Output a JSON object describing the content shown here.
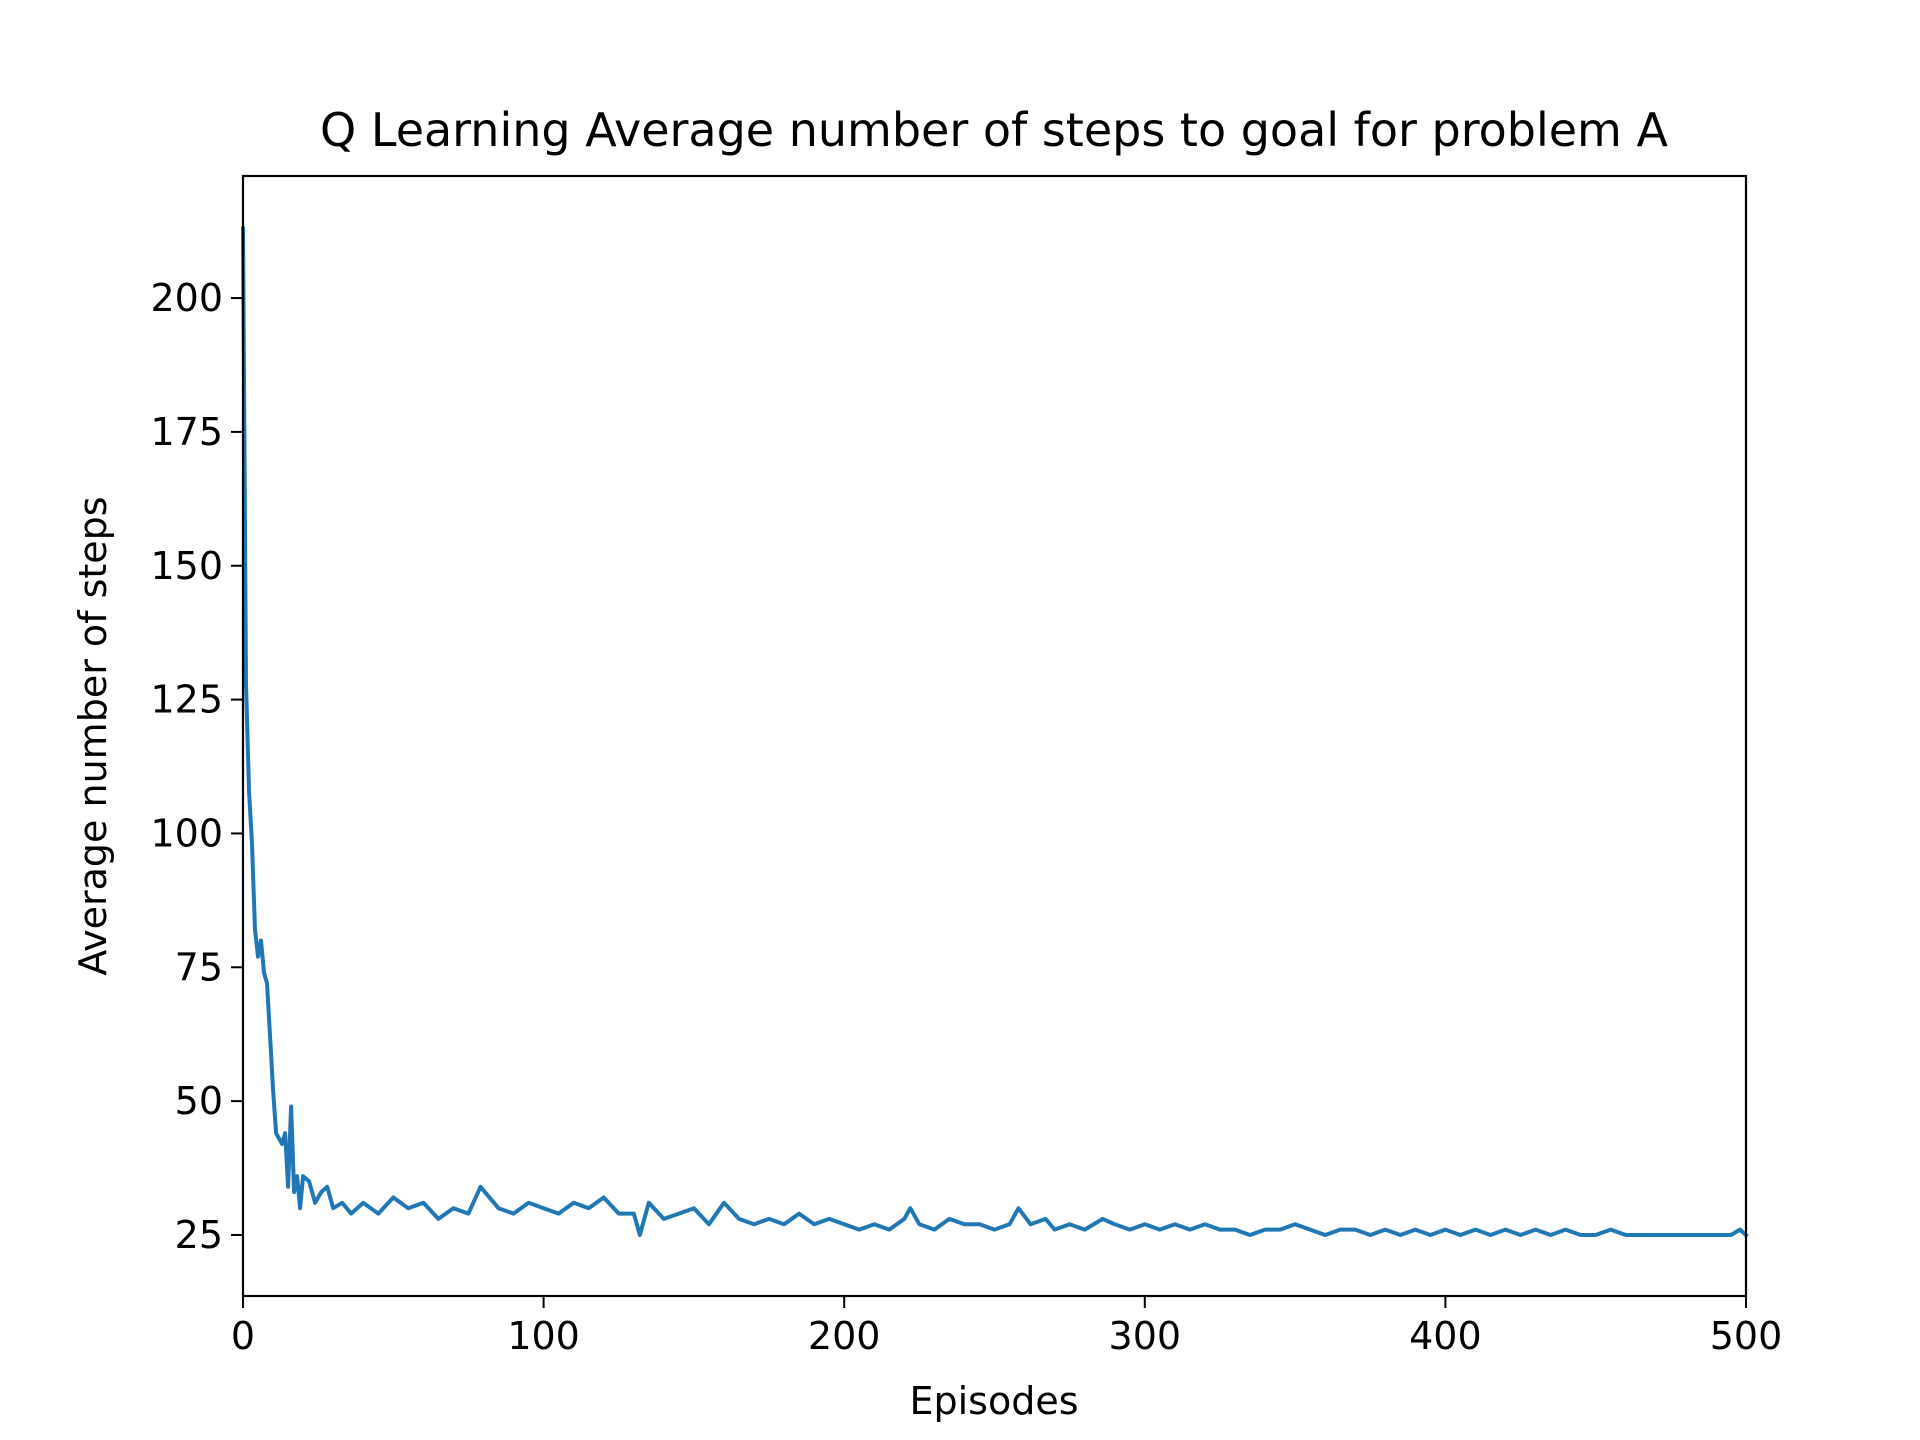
{
  "chart_data": {
    "type": "line",
    "title": "Q Learning Average number of steps to goal for problem A",
    "xlabel": "Episodes",
    "ylabel": "Average number of steps",
    "xlim": [
      0,
      500
    ],
    "ylim": [
      13.6,
      222.8
    ],
    "xticks": [
      0,
      100,
      200,
      300,
      400,
      500
    ],
    "yticks": [
      25,
      50,
      75,
      100,
      125,
      150,
      175,
      200
    ],
    "grid": false,
    "legend": "none",
    "line_color": "#1f77b4",
    "series": [
      {
        "name": "",
        "x": [
          0,
          1,
          2,
          3,
          4,
          5,
          6,
          7,
          8,
          9,
          10,
          11,
          12,
          13,
          14,
          15,
          16,
          17,
          18,
          19,
          20,
          22,
          24,
          26,
          28,
          30,
          33,
          36,
          40,
          45,
          50,
          55,
          60,
          65,
          70,
          75,
          79,
          85,
          90,
          95,
          100,
          105,
          110,
          115,
          120,
          125,
          130,
          132,
          135,
          140,
          145,
          150,
          155,
          160,
          165,
          170,
          175,
          180,
          185,
          190,
          195,
          200,
          205,
          210,
          215,
          220,
          222,
          225,
          230,
          235,
          240,
          245,
          250,
          255,
          258,
          262,
          267,
          270,
          275,
          280,
          286,
          290,
          295,
          300,
          305,
          310,
          315,
          320,
          325,
          330,
          335,
          340,
          345,
          350,
          355,
          360,
          365,
          370,
          375,
          380,
          385,
          390,
          395,
          400,
          405,
          410,
          415,
          420,
          425,
          430,
          435,
          440,
          445,
          450,
          455,
          460,
          465,
          470,
          475,
          480,
          485,
          490,
          495,
          498,
          500
        ],
        "y": [
          213,
          128,
          108,
          98,
          82,
          77,
          80,
          74,
          72,
          62,
          52,
          44,
          43,
          42,
          44,
          34,
          49,
          33,
          36,
          30,
          36,
          35,
          31,
          33,
          34,
          30,
          31,
          29,
          31,
          29,
          32,
          30,
          31,
          28,
          30,
          29,
          34,
          30,
          29,
          31,
          30,
          29,
          31,
          30,
          32,
          29,
          29,
          25,
          31,
          28,
          29,
          30,
          27,
          31,
          28,
          27,
          28,
          27,
          29,
          27,
          28,
          27,
          26,
          27,
          26,
          28,
          30,
          27,
          26,
          28,
          27,
          27,
          26,
          27,
          30,
          27,
          28,
          26,
          27,
          26,
          28,
          27,
          26,
          27,
          26,
          27,
          26,
          27,
          26,
          26,
          25,
          26,
          26,
          27,
          26,
          25,
          26,
          26,
          25,
          26,
          25,
          26,
          25,
          26,
          25,
          26,
          25,
          26,
          25,
          26,
          25,
          26,
          25,
          25,
          26,
          25,
          25,
          25,
          25,
          25,
          25,
          25,
          25,
          26,
          25
        ]
      }
    ]
  }
}
